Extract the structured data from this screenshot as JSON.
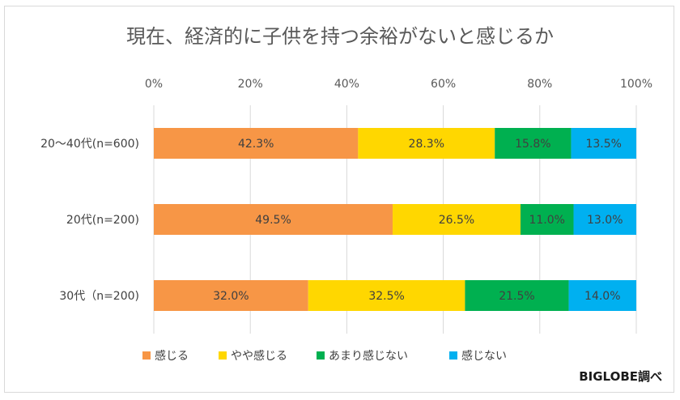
{
  "source_note": "BIGLOBE調べ",
  "chart_data": {
    "type": "bar",
    "orientation": "horizontal",
    "stacked": true,
    "title": "現在、経済的に子供を持つ余裕がないと感じるか",
    "categories": [
      "20～40代(n=600)",
      "20代(n=200)",
      "30代（n=200)"
    ],
    "xlim": [
      0,
      100
    ],
    "x_ticks": [
      "0%",
      "20%",
      "40%",
      "60%",
      "80%",
      "100%"
    ],
    "grid": "vertical",
    "legend_position": "bottom",
    "series": [
      {
        "name": "感じる",
        "color": "#f79646",
        "values": [
          42.3,
          49.5,
          32.0
        ],
        "labels": [
          "42.3%",
          "49.5%",
          "32.0%"
        ]
      },
      {
        "name": "やや感じる",
        "color": "#ffd700",
        "values": [
          28.3,
          26.5,
          32.5
        ],
        "labels": [
          "28.3%",
          "26.5%",
          "32.5%"
        ]
      },
      {
        "name": "あまり感じない",
        "color": "#00b050",
        "values": [
          15.8,
          11.0,
          21.5
        ],
        "labels": [
          "15.8%",
          "11.0%",
          "21.5%"
        ]
      },
      {
        "name": "感じない",
        "color": "#00b0f0",
        "values": [
          13.5,
          13.0,
          14.0
        ],
        "labels": [
          "13.5%",
          "13.0%",
          "14.0%"
        ]
      }
    ]
  }
}
